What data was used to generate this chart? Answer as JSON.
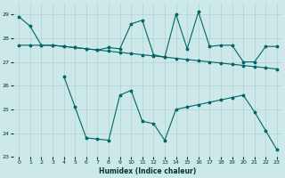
{
  "xlabel": "Humidex (Indice chaleur)",
  "xlim": [
    -0.5,
    23.5
  ],
  "ylim": [
    23,
    29.5
  ],
  "yticks": [
    23,
    24,
    25,
    26,
    27,
    28,
    29
  ],
  "bg_color": "#cce8e8",
  "line_color": "#006666",
  "line1_y": [
    28.9,
    28.5,
    27.7,
    27.7,
    27.65,
    27.6,
    27.55,
    27.5,
    27.45,
    27.4,
    27.35,
    27.3,
    27.25,
    27.2,
    27.15,
    27.1,
    27.05,
    27.0,
    26.95,
    26.9,
    26.85,
    26.8,
    26.75,
    26.7
  ],
  "line2_y": [
    27.7,
    27.7,
    27.7,
    27.7,
    27.65,
    27.6,
    27.55,
    27.5,
    27.6,
    27.55,
    28.6,
    28.75,
    27.3,
    27.2,
    29.0,
    27.55,
    29.1,
    27.65,
    27.7,
    27.7,
    27.0,
    27.0,
    27.65,
    27.65
  ],
  "line3_y": [
    null,
    null,
    null,
    null,
    26.4,
    25.1,
    23.8,
    23.75,
    23.7,
    25.6,
    25.8,
    24.5,
    24.4,
    23.7,
    25.0,
    25.1,
    25.2,
    25.3,
    25.4,
    25.5,
    25.6,
    24.9,
    24.1,
    23.3
  ]
}
